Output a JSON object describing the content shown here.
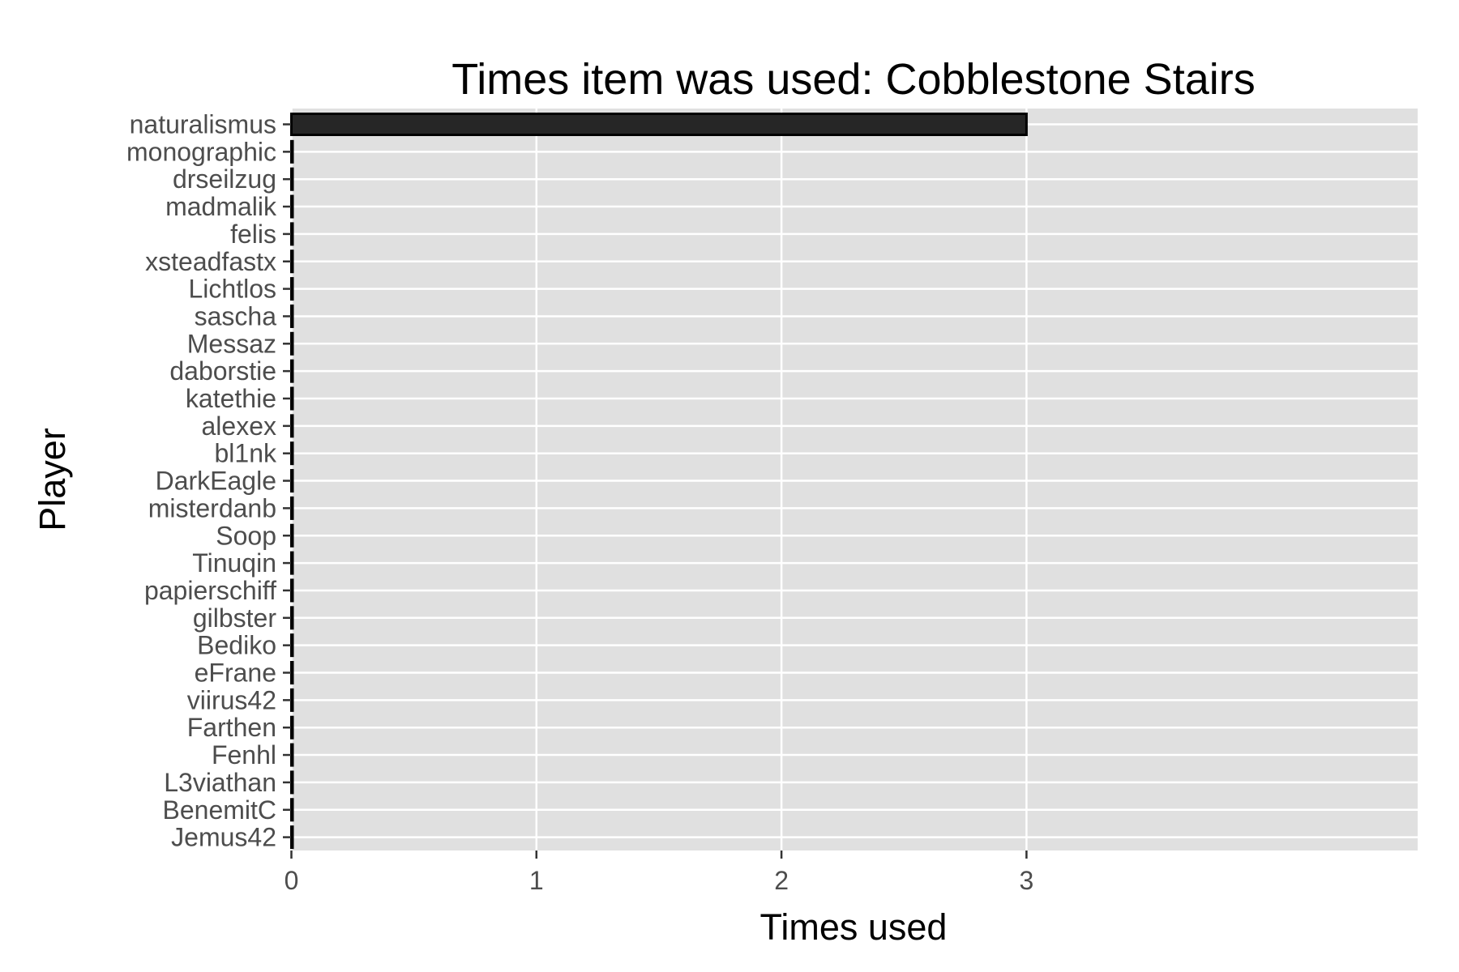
{
  "chart_data": {
    "type": "bar",
    "orientation": "horizontal",
    "title": "Times item was used: Cobblestone Stairs",
    "xlabel": "Times used",
    "ylabel": "Player",
    "categories": [
      "naturalismus",
      "monographic",
      "drseilzug",
      "madmalik",
      "felis",
      "xsteadfastx",
      "Lichtlos",
      "sascha",
      "Messaz",
      "daborstie",
      "katethie",
      "alexex",
      "bl1nk",
      "DarkEagle",
      "misterdanb",
      "Soop",
      "Tinuqin",
      "papierschiff",
      "gilbster",
      "Bediko",
      "eFrane",
      "viirus42",
      "Farthen",
      "Fenhl",
      "L3viathan",
      "BenemitC",
      "Jemus42"
    ],
    "values": [
      3,
      0,
      0,
      0,
      0,
      0,
      0,
      0,
      0,
      0,
      0,
      0,
      0,
      0,
      0,
      0,
      0,
      0,
      0,
      0,
      0,
      0,
      0,
      0,
      0,
      0,
      0
    ],
    "xlim": [
      0,
      4.6
    ],
    "xticks": [
      0,
      1,
      2,
      3
    ],
    "grid": true,
    "legend": "none",
    "colors": {
      "panel_background": "#e0e0e0",
      "grid": "#ffffff",
      "bar_fill": "#262626",
      "bar_stroke": "#000000",
      "tick_text": "#4d4d4d",
      "tick_mark": "#333333",
      "text": "#000000"
    }
  }
}
